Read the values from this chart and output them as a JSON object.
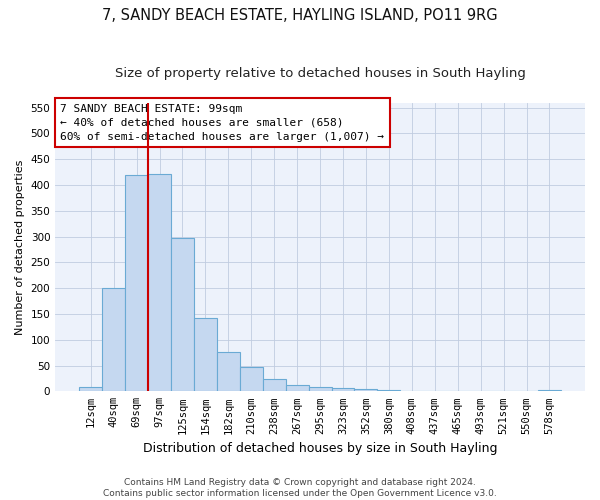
{
  "title": "7, SANDY BEACH ESTATE, HAYLING ISLAND, PO11 9RG",
  "subtitle": "Size of property relative to detached houses in South Hayling",
  "xlabel": "Distribution of detached houses by size in South Hayling",
  "ylabel": "Number of detached properties",
  "categories": [
    "12sqm",
    "40sqm",
    "69sqm",
    "97sqm",
    "125sqm",
    "154sqm",
    "182sqm",
    "210sqm",
    "238sqm",
    "267sqm",
    "295sqm",
    "323sqm",
    "352sqm",
    "380sqm",
    "408sqm",
    "437sqm",
    "465sqm",
    "493sqm",
    "521sqm",
    "550sqm",
    "578sqm"
  ],
  "bar_heights": [
    8,
    200,
    420,
    422,
    298,
    143,
    77,
    48,
    23,
    12,
    8,
    6,
    5,
    2,
    0,
    0,
    0,
    0,
    0,
    0,
    3
  ],
  "bar_color": "#c5d8f0",
  "bar_edge_color": "#6aaad4",
  "vline_x_index": 2.5,
  "vline_color": "#cc0000",
  "annotation_line1": "7 SANDY BEACH ESTATE: 99sqm",
  "annotation_line2": "← 40% of detached houses are smaller (658)",
  "annotation_line3": "60% of semi-detached houses are larger (1,007) →",
  "annotation_box_facecolor": "#ffffff",
  "annotation_box_edgecolor": "#cc0000",
  "ylim": [
    0,
    560
  ],
  "yticks": [
    0,
    50,
    100,
    150,
    200,
    250,
    300,
    350,
    400,
    450,
    500,
    550
  ],
  "footer_line1": "Contains HM Land Registry data © Crown copyright and database right 2024.",
  "footer_line2": "Contains public sector information licensed under the Open Government Licence v3.0.",
  "bg_color": "#edf2fb",
  "fig_bg_color": "#ffffff",
  "title_fontsize": 10.5,
  "subtitle_fontsize": 9.5,
  "ylabel_fontsize": 8,
  "xlabel_fontsize": 9,
  "tick_fontsize": 7.5,
  "annotation_fontsize": 8,
  "footer_fontsize": 6.5
}
